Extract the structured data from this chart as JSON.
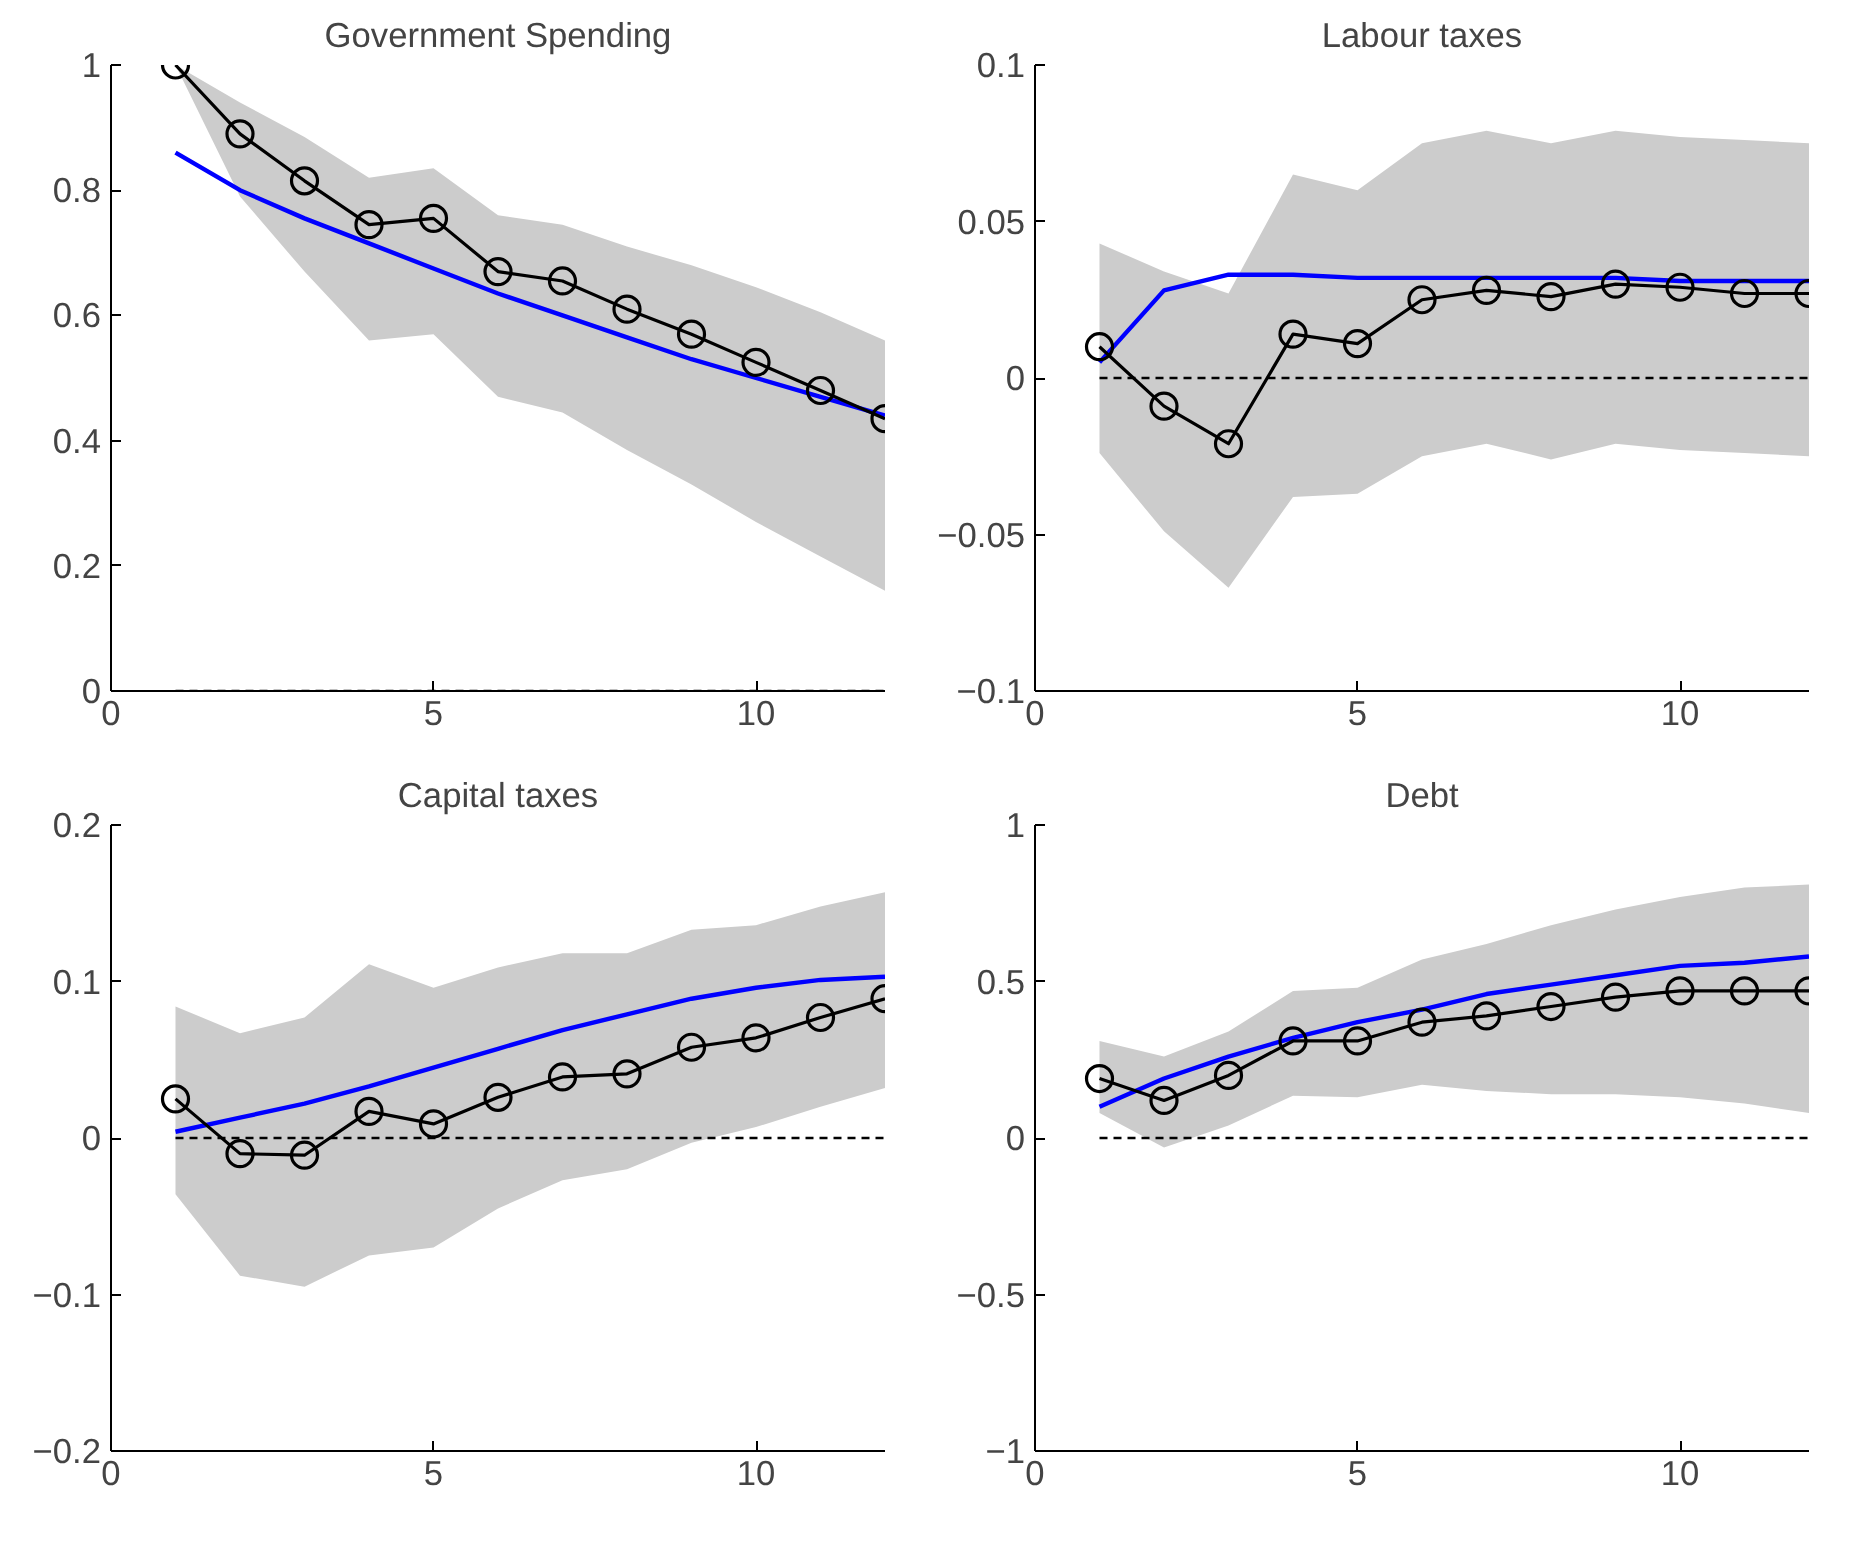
{
  "chart_data": [
    {
      "type": "line",
      "title": "Government Spending",
      "x": [
        1,
        2,
        3,
        4,
        5,
        6,
        7,
        8,
        9,
        10,
        11,
        12
      ],
      "xlim": [
        0,
        12
      ],
      "xticks": [
        0,
        5,
        10
      ],
      "ylim": [
        0,
        1
      ],
      "yticks": [
        0,
        0.2,
        0.4,
        0.6,
        0.8,
        1
      ],
      "grid": false,
      "ref_lines": [
        {
          "axis": "y",
          "value": 0,
          "color": "#000000",
          "line_style": "dashed"
        }
      ],
      "series": [
        {
          "color": "#000000",
          "marker": "circle",
          "values": [
            1.0,
            0.89,
            0.815,
            0.745,
            0.755,
            0.67,
            0.655,
            0.61,
            0.57,
            0.525,
            0.48,
            0.435
          ],
          "lower": [
            1.0,
            0.79,
            0.67,
            0.56,
            0.57,
            0.47,
            0.445,
            0.385,
            0.33,
            0.27,
            0.215,
            0.16
          ],
          "upper": [
            1.0,
            0.94,
            0.885,
            0.82,
            0.835,
            0.76,
            0.745,
            0.71,
            0.68,
            0.645,
            0.605,
            0.56
          ]
        },
        {
          "color": "#0000ff",
          "marker": "none",
          "values": [
            0.86,
            0.8,
            0.755,
            0.715,
            0.675,
            0.635,
            0.6,
            0.565,
            0.53,
            0.5,
            0.47,
            0.44
          ]
        }
      ]
    },
    {
      "type": "line",
      "title": "Labour taxes",
      "x": [
        1,
        2,
        3,
        4,
        5,
        6,
        7,
        8,
        9,
        10,
        11,
        12
      ],
      "xlim": [
        0,
        12
      ],
      "xticks": [
        0,
        5,
        10
      ],
      "ylim": [
        -0.1,
        0.1
      ],
      "yticks": [
        {
          "value": -0.1,
          "label": "−0.1"
        },
        {
          "value": -0.05,
          "label": "−0.05"
        },
        0,
        0.05,
        0.1
      ],
      "grid": false,
      "ref_lines": [
        {
          "axis": "y",
          "value": 0,
          "color": "#000000",
          "line_style": "dashed"
        }
      ],
      "series": [
        {
          "color": "#000000",
          "marker": "circle",
          "values": [
            0.01,
            -0.009,
            -0.021,
            0.014,
            0.011,
            0.025,
            0.028,
            0.026,
            0.03,
            0.029,
            0.027,
            0.027
          ],
          "lower": [
            -0.024,
            -0.049,
            -0.067,
            -0.038,
            -0.037,
            -0.025,
            -0.021,
            -0.026,
            -0.021,
            -0.023,
            -0.024,
            -0.025
          ],
          "upper": [
            0.043,
            0.034,
            0.027,
            0.065,
            0.06,
            0.075,
            0.079,
            0.075,
            0.079,
            0.077,
            0.076,
            0.075
          ]
        },
        {
          "color": "#0000ff",
          "marker": "none",
          "values": [
            0.005,
            0.028,
            0.033,
            0.033,
            0.032,
            0.032,
            0.032,
            0.032,
            0.032,
            0.031,
            0.031,
            0.031
          ]
        }
      ]
    },
    {
      "type": "line",
      "title": "Capital taxes",
      "x": [
        1,
        2,
        3,
        4,
        5,
        6,
        7,
        8,
        9,
        10,
        11,
        12
      ],
      "xlim": [
        0,
        12
      ],
      "xticks": [
        0,
        5,
        10
      ],
      "ylim": [
        -0.2,
        0.2
      ],
      "yticks": [
        {
          "value": -0.2,
          "label": "−0.2"
        },
        {
          "value": -0.1,
          "label": "−0.1"
        },
        0,
        0.1,
        0.2
      ],
      "grid": false,
      "ref_lines": [
        {
          "axis": "y",
          "value": 0,
          "color": "#000000",
          "line_style": "dashed"
        }
      ],
      "series": [
        {
          "color": "#000000",
          "marker": "circle",
          "values": [
            0.025,
            -0.01,
            -0.011,
            0.017,
            0.009,
            0.026,
            0.039,
            0.041,
            0.058,
            0.064,
            0.077,
            0.089
          ],
          "lower": [
            -0.036,
            -0.088,
            -0.095,
            -0.075,
            -0.07,
            -0.045,
            -0.027,
            -0.02,
            -0.003,
            0.007,
            0.02,
            0.032
          ],
          "upper": [
            0.084,
            0.067,
            0.077,
            0.111,
            0.096,
            0.109,
            0.118,
            0.118,
            0.133,
            0.136,
            0.148,
            0.157
          ]
        },
        {
          "color": "#0000ff",
          "marker": "none",
          "values": [
            0.004,
            0.013,
            0.022,
            0.033,
            0.045,
            0.057,
            0.069,
            0.079,
            0.089,
            0.096,
            0.101,
            0.103
          ]
        }
      ]
    },
    {
      "type": "line",
      "title": "Debt",
      "x": [
        1,
        2,
        3,
        4,
        5,
        6,
        7,
        8,
        9,
        10,
        11,
        12
      ],
      "xlim": [
        0,
        12
      ],
      "xticks": [
        0,
        5,
        10
      ],
      "ylim": [
        -1,
        1
      ],
      "yticks": [
        {
          "value": -1,
          "label": "−1"
        },
        {
          "value": -0.5,
          "label": "−0.5"
        },
        0,
        0.5,
        1
      ],
      "grid": false,
      "ref_lines": [
        {
          "axis": "y",
          "value": 0,
          "color": "#000000",
          "line_style": "dashed"
        }
      ],
      "series": [
        {
          "color": "#000000",
          "marker": "circle",
          "values": [
            0.19,
            0.12,
            0.2,
            0.31,
            0.31,
            0.37,
            0.39,
            0.42,
            0.45,
            0.47,
            0.47,
            0.47
          ],
          "lower": [
            0.08,
            -0.03,
            0.04,
            0.135,
            0.13,
            0.17,
            0.15,
            0.14,
            0.14,
            0.13,
            0.11,
            0.08
          ],
          "upper": [
            0.31,
            0.26,
            0.34,
            0.47,
            0.48,
            0.57,
            0.62,
            0.68,
            0.73,
            0.77,
            0.8,
            0.81
          ]
        },
        {
          "color": "#0000ff",
          "marker": "none",
          "values": [
            0.1,
            0.19,
            0.26,
            0.32,
            0.37,
            0.41,
            0.46,
            0.49,
            0.52,
            0.55,
            0.56,
            0.58
          ]
        }
      ]
    }
  ]
}
